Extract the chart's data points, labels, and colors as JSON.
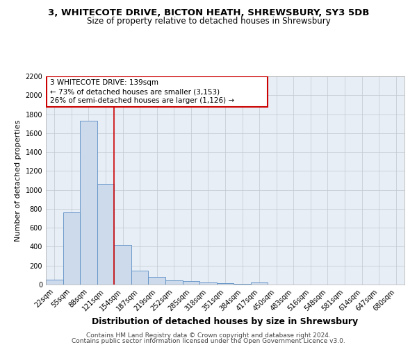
{
  "title1": "3, WHITECOTE DRIVE, BICTON HEATH, SHREWSBURY, SY3 5DB",
  "title2": "Size of property relative to detached houses in Shrewsbury",
  "xlabel": "Distribution of detached houses by size in Shrewsbury",
  "ylabel": "Number of detached properties",
  "footer1": "Contains HM Land Registry data © Crown copyright and database right 2024.",
  "footer2": "Contains public sector information licensed under the Open Government Licence v3.0.",
  "bin_labels": [
    "22sqm",
    "55sqm",
    "88sqm",
    "121sqm",
    "154sqm",
    "187sqm",
    "219sqm",
    "252sqm",
    "285sqm",
    "318sqm",
    "351sqm",
    "384sqm",
    "417sqm",
    "450sqm",
    "483sqm",
    "516sqm",
    "548sqm",
    "581sqm",
    "614sqm",
    "647sqm",
    "680sqm"
  ],
  "bar_values": [
    55,
    760,
    1730,
    1060,
    420,
    150,
    80,
    45,
    35,
    25,
    15,
    10,
    20,
    0,
    0,
    0,
    0,
    0,
    0,
    0,
    0
  ],
  "bar_color": "#ccdaec",
  "bar_edge_color": "#5b8ec4",
  "vline_x": 3.5,
  "vline_color": "#cc0000",
  "annotation_text": "3 WHITECOTE DRIVE: 139sqm\n← 73% of detached houses are smaller (3,153)\n26% of semi-detached houses are larger (1,126) →",
  "annotation_box_color": "#ffffff",
  "annotation_box_edge_color": "#cc0000",
  "ylim": [
    0,
    2200
  ],
  "yticks": [
    0,
    200,
    400,
    600,
    800,
    1000,
    1200,
    1400,
    1600,
    1800,
    2000,
    2200
  ],
  "background_color": "#ffffff",
  "axes_background": "#e8eef5",
  "grid_color": "#c0c8d0",
  "title1_fontsize": 9.5,
  "title2_fontsize": 8.5,
  "xlabel_fontsize": 9,
  "ylabel_fontsize": 8,
  "footer_fontsize": 6.5,
  "tick_fontsize": 7,
  "annotation_fontsize": 7.5
}
